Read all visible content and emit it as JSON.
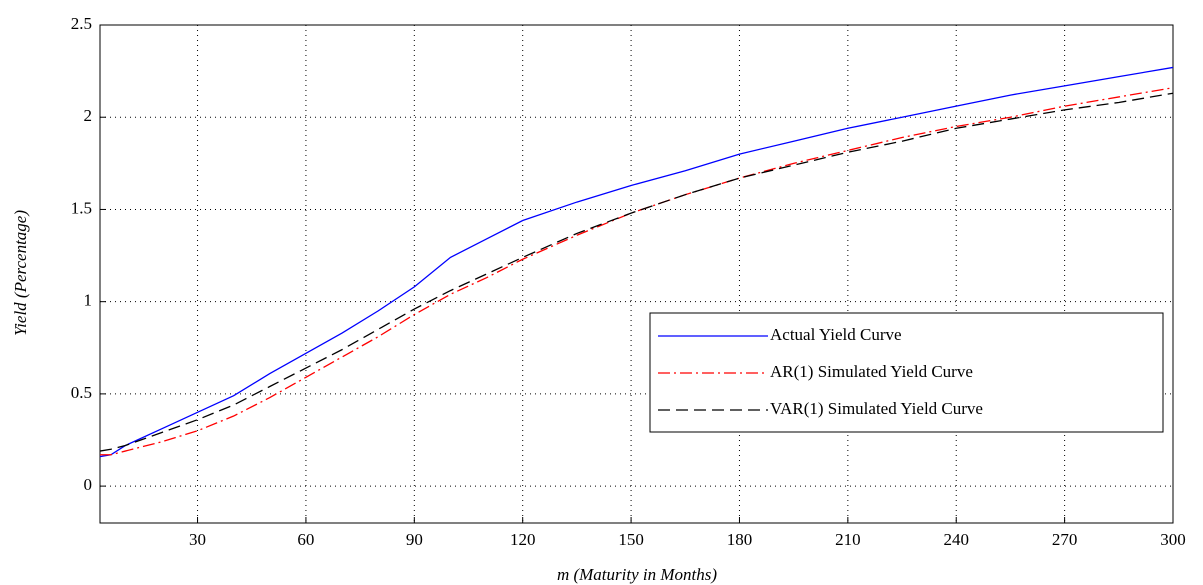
{
  "chart_data": {
    "type": "line",
    "xlabel": "m (Maturity in Months)",
    "ylabel": "Yield (Percentage)",
    "x": [
      3,
      6,
      10,
      20,
      30,
      40,
      50,
      60,
      70,
      80,
      90,
      100,
      110,
      120,
      135,
      150,
      165,
      180,
      195,
      210,
      225,
      240,
      255,
      270,
      285,
      300
    ],
    "series": [
      {
        "name": "Actual Yield Curve",
        "color": "#0000ff",
        "dash": "solid",
        "values": [
          0.16,
          0.17,
          0.22,
          0.31,
          0.4,
          0.49,
          0.61,
          0.72,
          0.83,
          0.95,
          1.08,
          1.24,
          1.34,
          1.44,
          1.54,
          1.63,
          1.71,
          1.8,
          1.87,
          1.94,
          2.0,
          2.06,
          2.12,
          2.17,
          2.22,
          2.27
        ]
      },
      {
        "name": "AR(1) Simulated Yield Curve",
        "color": "#ff0000",
        "dash": "dashdot",
        "values": [
          0.17,
          0.17,
          0.19,
          0.24,
          0.3,
          0.38,
          0.48,
          0.59,
          0.7,
          0.81,
          0.93,
          1.04,
          1.13,
          1.23,
          1.36,
          1.48,
          1.58,
          1.67,
          1.75,
          1.82,
          1.89,
          1.95,
          2.0,
          2.06,
          2.11,
          2.16
        ]
      },
      {
        "name": "VAR(1) Simulated Yield Curve",
        "color": "#000000",
        "dash": "dashed",
        "values": [
          0.19,
          0.2,
          0.22,
          0.29,
          0.36,
          0.44,
          0.54,
          0.64,
          0.74,
          0.85,
          0.96,
          1.06,
          1.15,
          1.24,
          1.37,
          1.48,
          1.58,
          1.67,
          1.74,
          1.81,
          1.87,
          1.94,
          1.99,
          2.04,
          2.08,
          2.13
        ]
      }
    ],
    "xlim": [
      3,
      300
    ],
    "ylim": [
      -0.2,
      2.5
    ],
    "xticks": [
      30,
      60,
      90,
      120,
      150,
      180,
      210,
      240,
      270,
      300
    ],
    "yticks": [
      0,
      0.5,
      1,
      1.5,
      2,
      2.5
    ],
    "grid": true,
    "legend": "lower right"
  }
}
